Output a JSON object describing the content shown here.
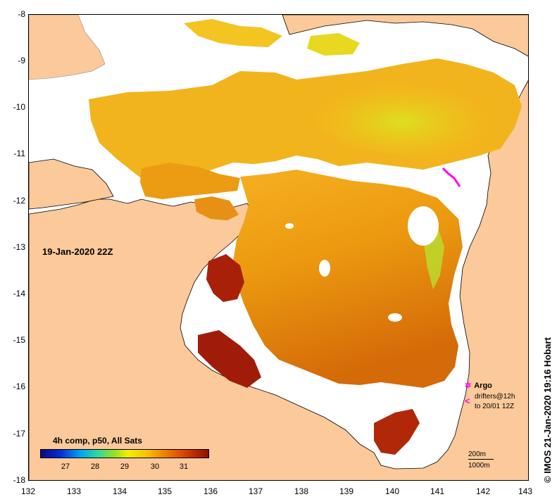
{
  "map": {
    "timestamp": "19-Jan-2020 22Z",
    "x_axis": {
      "ticks": [
        "132",
        "133",
        "134",
        "135",
        "136",
        "137",
        "138",
        "139",
        "140",
        "141",
        "142",
        "143"
      ]
    },
    "y_axis": {
      "ticks": [
        "-8",
        "-9",
        "-10",
        "-11",
        "-12",
        "-13",
        "-14",
        "-15",
        "-16",
        "-17",
        "-18"
      ]
    },
    "lon_range": [
      132,
      143
    ],
    "lat_range": [
      -18,
      -8
    ],
    "colors": {
      "land": "#fbc99a",
      "no_data": "#ffffff",
      "argo": "#ff00ff"
    }
  },
  "colorbar": {
    "title": "4h comp, p50, All Sats",
    "ticks": [
      "27",
      "28",
      "29",
      "30",
      "31"
    ],
    "tick_values": [
      27,
      28,
      29,
      30,
      31
    ],
    "range": [
      26,
      32
    ]
  },
  "legend": {
    "argo_label": "Argo",
    "drifter_line1": "drifters@12h",
    "drifter_line2": "to 20/01 12Z"
  },
  "scale": {
    "line1": "200m",
    "line2": "1000m"
  },
  "copyright": "© IMOS 21-Jan-2020 19:16 Hobart"
}
